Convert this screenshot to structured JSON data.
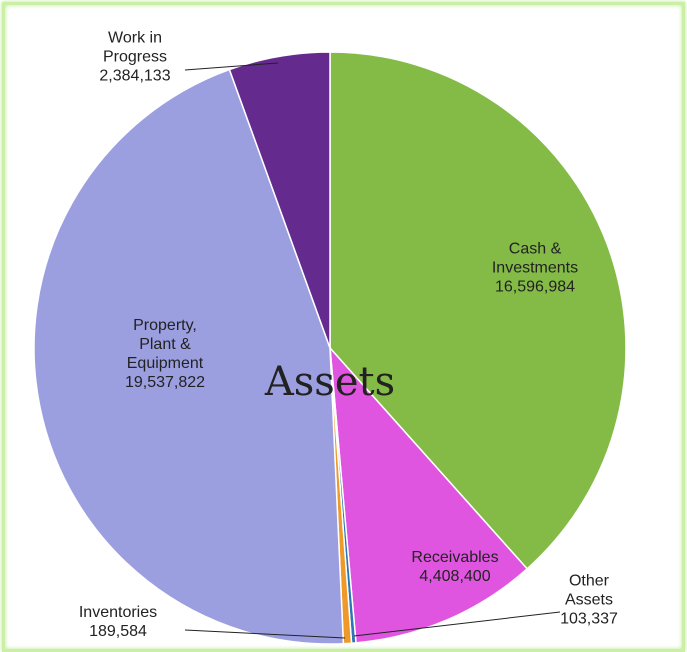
{
  "chart_data": {
    "type": "pie",
    "title": "Assets",
    "categories": [
      "Cash & Investments",
      "Receivables",
      "Other Assets",
      "Inventories",
      "Property, Plant & Equipment",
      "Work in Progress"
    ],
    "values": [
      16596984,
      4408400,
      103337,
      189584,
      19537822,
      2384133
    ],
    "value_labels": [
      "16,596,984",
      "4,408,400",
      "103,337",
      "189,584",
      "19,537,822",
      "2,384,133"
    ],
    "colors": [
      "#84bb47",
      "#e055e0",
      "#2e75b6",
      "#ed9a2a",
      "#9b9fe0",
      "#652a8e"
    ]
  }
}
